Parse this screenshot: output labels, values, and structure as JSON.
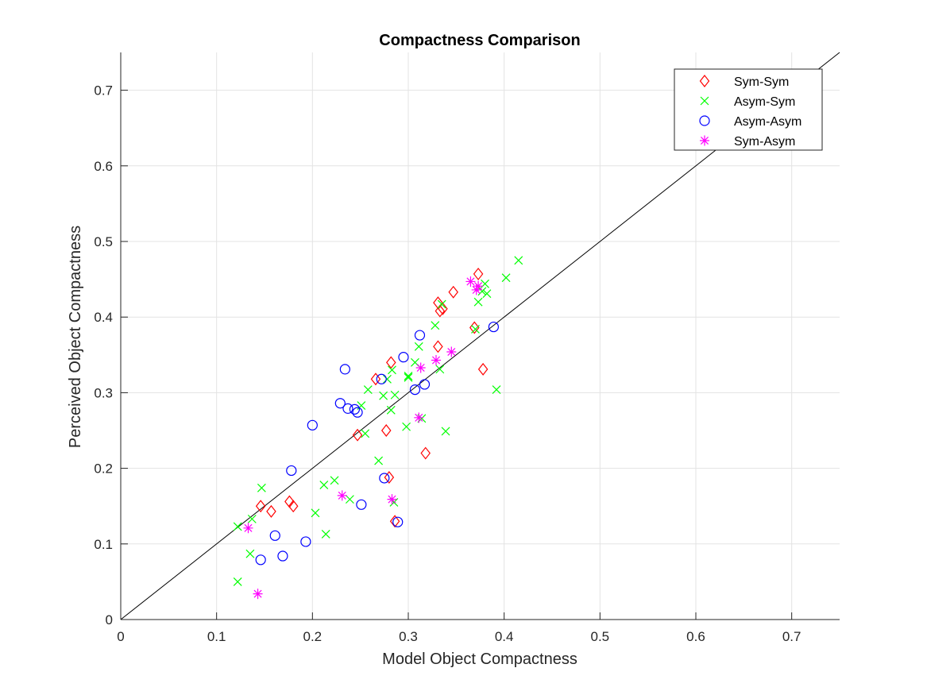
{
  "chart_data": {
    "type": "scatter",
    "title": "Compactness Comparison",
    "xlabel": "Model Object Compactness",
    "ylabel": "Perceived Object Compactness",
    "xlim": [
      0,
      0.75
    ],
    "ylim": [
      0,
      0.75
    ],
    "xticks": [
      "0",
      "0.1",
      "0.2",
      "0.3",
      "0.4",
      "0.5",
      "0.6",
      "0.7"
    ],
    "yticks": [
      "0",
      "0.1",
      "0.2",
      "0.3",
      "0.4",
      "0.5",
      "0.6",
      "0.7"
    ],
    "tick_values": [
      0,
      0.1,
      0.2,
      0.3,
      0.4,
      0.5,
      0.6,
      0.7
    ],
    "grid": true,
    "legend_position": "top-right",
    "reference_line": {
      "from": [
        0,
        0
      ],
      "to": [
        0.75,
        0.75
      ],
      "color": "#000000"
    },
    "series": [
      {
        "name": "Sym-Sym",
        "marker": "diamond",
        "color": "#ff0000",
        "points": [
          [
            0.146,
            0.15
          ],
          [
            0.157,
            0.143
          ],
          [
            0.176,
            0.156
          ],
          [
            0.18,
            0.15
          ],
          [
            0.247,
            0.244
          ],
          [
            0.266,
            0.318
          ],
          [
            0.277,
            0.25
          ],
          [
            0.28,
            0.188
          ],
          [
            0.282,
            0.34
          ],
          [
            0.286,
            0.13
          ],
          [
            0.318,
            0.22
          ],
          [
            0.331,
            0.361
          ],
          [
            0.331,
            0.419
          ],
          [
            0.333,
            0.408
          ],
          [
            0.336,
            0.411
          ],
          [
            0.347,
            0.433
          ],
          [
            0.369,
            0.386
          ],
          [
            0.373,
            0.457
          ],
          [
            0.378,
            0.331
          ]
        ]
      },
      {
        "name": "Asym-Sym",
        "marker": "x",
        "color": "#00ff00",
        "points": [
          [
            0.122,
            0.123
          ],
          [
            0.122,
            0.05
          ],
          [
            0.135,
            0.087
          ],
          [
            0.137,
            0.133
          ],
          [
            0.147,
            0.174
          ],
          [
            0.203,
            0.141
          ],
          [
            0.212,
            0.178
          ],
          [
            0.214,
            0.113
          ],
          [
            0.223,
            0.184
          ],
          [
            0.239,
            0.159
          ],
          [
            0.251,
            0.283
          ],
          [
            0.255,
            0.246
          ],
          [
            0.258,
            0.304
          ],
          [
            0.269,
            0.21
          ],
          [
            0.274,
            0.296
          ],
          [
            0.278,
            0.318
          ],
          [
            0.282,
            0.277
          ],
          [
            0.283,
            0.33
          ],
          [
            0.285,
            0.155
          ],
          [
            0.286,
            0.297
          ],
          [
            0.298,
            0.255
          ],
          [
            0.3,
            0.32
          ],
          [
            0.3,
            0.322
          ],
          [
            0.307,
            0.34
          ],
          [
            0.311,
            0.361
          ],
          [
            0.314,
            0.266
          ],
          [
            0.328,
            0.389
          ],
          [
            0.333,
            0.331
          ],
          [
            0.335,
            0.417
          ],
          [
            0.339,
            0.249
          ],
          [
            0.37,
            0.384
          ],
          [
            0.373,
            0.42
          ],
          [
            0.377,
            0.434
          ],
          [
            0.38,
            0.444
          ],
          [
            0.382,
            0.431
          ],
          [
            0.392,
            0.304
          ],
          [
            0.402,
            0.452
          ],
          [
            0.415,
            0.475
          ]
        ]
      },
      {
        "name": "Asym-Asym",
        "marker": "circle",
        "color": "#0000ff",
        "points": [
          [
            0.146,
            0.079
          ],
          [
            0.161,
            0.111
          ],
          [
            0.169,
            0.084
          ],
          [
            0.178,
            0.197
          ],
          [
            0.193,
            0.103
          ],
          [
            0.2,
            0.257
          ],
          [
            0.229,
            0.286
          ],
          [
            0.234,
            0.331
          ],
          [
            0.237,
            0.279
          ],
          [
            0.244,
            0.278
          ],
          [
            0.247,
            0.274
          ],
          [
            0.251,
            0.152
          ],
          [
            0.272,
            0.318
          ],
          [
            0.275,
            0.187
          ],
          [
            0.289,
            0.129
          ],
          [
            0.295,
            0.347
          ],
          [
            0.307,
            0.304
          ],
          [
            0.312,
            0.376
          ],
          [
            0.317,
            0.311
          ],
          [
            0.389,
            0.387
          ]
        ]
      },
      {
        "name": "Sym-Asym",
        "marker": "asterisk",
        "color": "#ff00ff",
        "points": [
          [
            0.133,
            0.121
          ],
          [
            0.143,
            0.034
          ],
          [
            0.231,
            0.164
          ],
          [
            0.283,
            0.159
          ],
          [
            0.311,
            0.267
          ],
          [
            0.313,
            0.333
          ],
          [
            0.329,
            0.343
          ],
          [
            0.345,
            0.354
          ],
          [
            0.365,
            0.447
          ],
          [
            0.371,
            0.436
          ],
          [
            0.373,
            0.441
          ]
        ]
      }
    ]
  }
}
